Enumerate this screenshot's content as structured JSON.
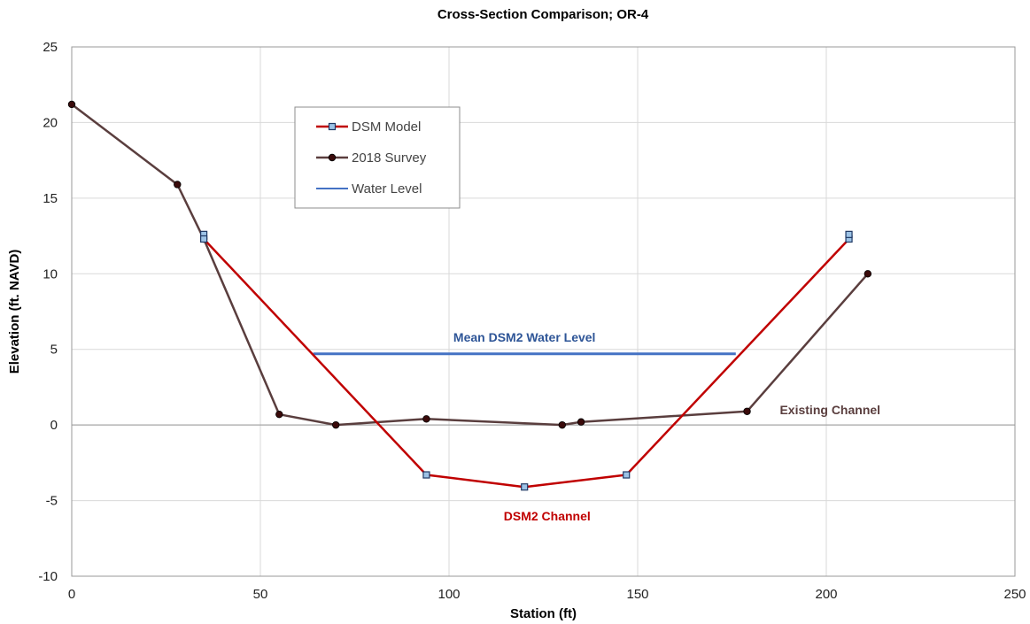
{
  "chart_data": {
    "type": "line",
    "title": "Cross-Section Comparison; OR-4",
    "xlabel": "Station (ft)",
    "ylabel": "Elevation (ft. NAVD)",
    "xlim": [
      0,
      250
    ],
    "ylim": [
      -10,
      25
    ],
    "xticks": [
      0,
      50,
      100,
      150,
      200,
      250
    ],
    "yticks": [
      -10,
      -5,
      0,
      5,
      10,
      15,
      20,
      25
    ],
    "grid": true,
    "legend_position": "upper-left inside plot",
    "series": [
      {
        "name": "DSM Model",
        "color": "#c00000",
        "marker": "square",
        "x": [
          35,
          35,
          94,
          120,
          147,
          206,
          206
        ],
        "y": [
          12.6,
          12.3,
          -3.3,
          -4.1,
          -3.3,
          12.3,
          12.6
        ]
      },
      {
        "name": "2018 Survey",
        "color": "#5a3e3e",
        "marker": "circle",
        "x": [
          0,
          28,
          35,
          55,
          70,
          94,
          130,
          135,
          179,
          211
        ],
        "y": [
          21.2,
          15.9,
          12.3,
          0.7,
          0.0,
          0.4,
          0.0,
          0.2,
          0.9,
          10.0
        ]
      },
      {
        "name": "Water Level",
        "color": "#4472c4",
        "marker": "none",
        "x": [
          64,
          176
        ],
        "y": [
          4.7,
          4.7
        ]
      }
    ],
    "annotations": [
      {
        "text": "Mean DSM2 Water Level",
        "x": 120,
        "y": 5.5,
        "color": "#2e5597"
      },
      {
        "text": "Existing Channel",
        "x": 201,
        "y": 0.7,
        "color": "#5a3e3e"
      },
      {
        "text": "DSM2 Channel",
        "x": 126,
        "y": -6.3,
        "color": "#c00000"
      }
    ]
  }
}
